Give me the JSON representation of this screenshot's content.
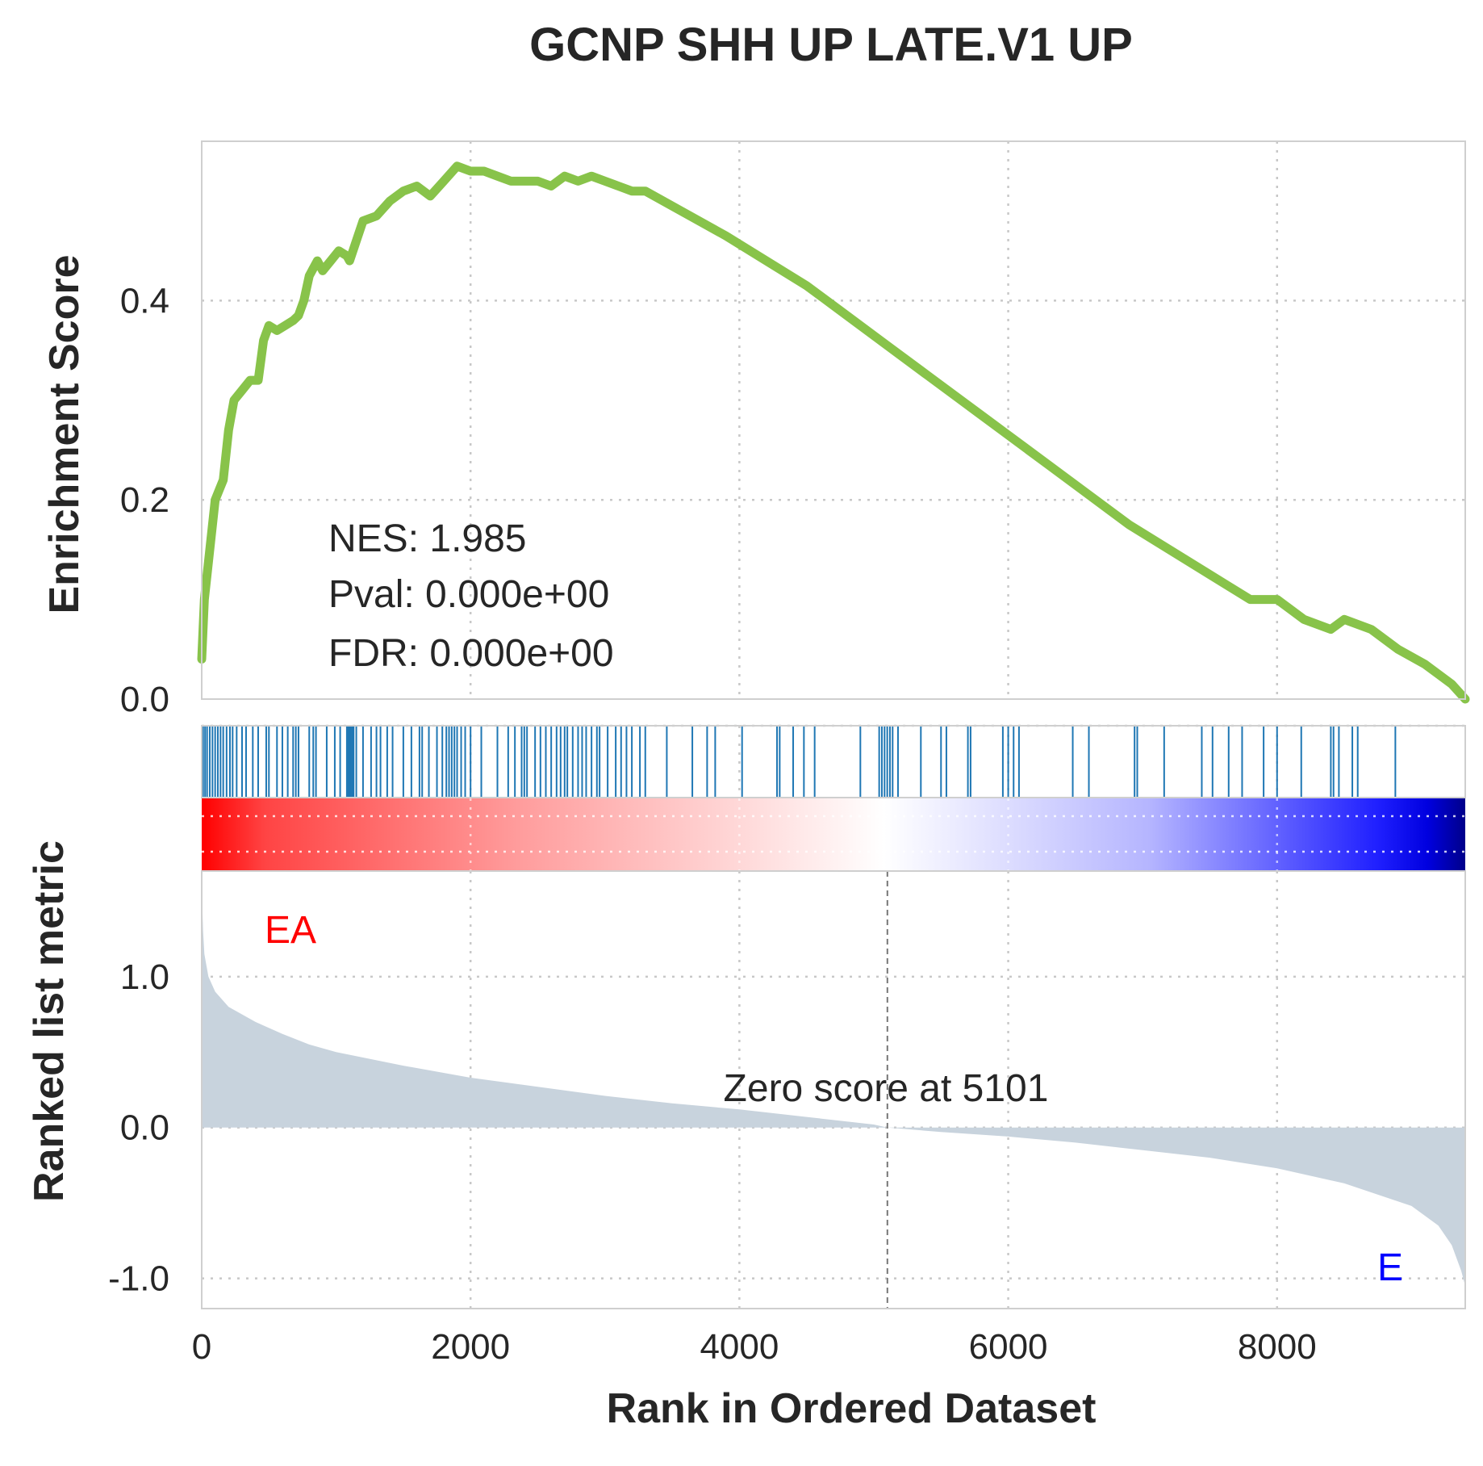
{
  "chart_data": {
    "type": "line",
    "title": "GCNP SHH UP LATE.V1 UP",
    "xlabel": "Rank in Ordered Dataset",
    "x_range": [
      0,
      9400
    ],
    "x_ticks": [
      0,
      2000,
      4000,
      6000,
      8000
    ],
    "x_tick_labels": [
      "0",
      "2000",
      "4000",
      "6000",
      "8000"
    ],
    "grid": true,
    "enrichment": {
      "ylabel": "Enrichment Score",
      "ylim": [
        0,
        0.56
      ],
      "y_ticks": [
        0.0,
        0.2,
        0.4
      ],
      "y_tick_labels": [
        "0.0",
        "0.2",
        "0.4"
      ],
      "color": "#88c34a",
      "points": [
        [
          0,
          0.04
        ],
        [
          20,
          0.1
        ],
        [
          60,
          0.15
        ],
        [
          100,
          0.2
        ],
        [
          160,
          0.22
        ],
        [
          200,
          0.27
        ],
        [
          240,
          0.3
        ],
        [
          300,
          0.31
        ],
        [
          360,
          0.32
        ],
        [
          420,
          0.32
        ],
        [
          460,
          0.36
        ],
        [
          500,
          0.375
        ],
        [
          560,
          0.37
        ],
        [
          620,
          0.375
        ],
        [
          680,
          0.38
        ],
        [
          720,
          0.385
        ],
        [
          760,
          0.4
        ],
        [
          800,
          0.425
        ],
        [
          860,
          0.44
        ],
        [
          900,
          0.43
        ],
        [
          960,
          0.44
        ],
        [
          1020,
          0.45
        ],
        [
          1080,
          0.445
        ],
        [
          1100,
          0.44
        ],
        [
          1150,
          0.46
        ],
        [
          1200,
          0.48
        ],
        [
          1300,
          0.485
        ],
        [
          1400,
          0.5
        ],
        [
          1500,
          0.51
        ],
        [
          1600,
          0.515
        ],
        [
          1700,
          0.505
        ],
        [
          1800,
          0.52
        ],
        [
          1900,
          0.535
        ],
        [
          2000,
          0.53
        ],
        [
          2100,
          0.53
        ],
        [
          2200,
          0.525
        ],
        [
          2300,
          0.52
        ],
        [
          2400,
          0.52
        ],
        [
          2500,
          0.52
        ],
        [
          2600,
          0.515
        ],
        [
          2700,
          0.525
        ],
        [
          2800,
          0.52
        ],
        [
          2900,
          0.525
        ],
        [
          3000,
          0.52
        ],
        [
          3100,
          0.515
        ],
        [
          3200,
          0.51
        ],
        [
          3300,
          0.51
        ],
        [
          3500,
          0.495
        ],
        [
          3700,
          0.48
        ],
        [
          3900,
          0.465
        ],
        [
          4200,
          0.44
        ],
        [
          4500,
          0.415
        ],
        [
          4800,
          0.385
        ],
        [
          5100,
          0.355
        ],
        [
          5400,
          0.325
        ],
        [
          5700,
          0.295
        ],
        [
          6000,
          0.265
        ],
        [
          6300,
          0.235
        ],
        [
          6600,
          0.205
        ],
        [
          6900,
          0.175
        ],
        [
          7200,
          0.15
        ],
        [
          7500,
          0.125
        ],
        [
          7800,
          0.1
        ],
        [
          8000,
          0.1
        ],
        [
          8200,
          0.08
        ],
        [
          8400,
          0.07
        ],
        [
          8500,
          0.08
        ],
        [
          8700,
          0.07
        ],
        [
          8900,
          0.05
        ],
        [
          9100,
          0.035
        ],
        [
          9300,
          0.015
        ],
        [
          9400,
          0.0
        ]
      ]
    },
    "hits": [
      10,
      25,
      40,
      60,
      80,
      100,
      120,
      140,
      160,
      185,
      210,
      230,
      260,
      300,
      330,
      380,
      420,
      480,
      500,
      560,
      600,
      640,
      680,
      700,
      720,
      800,
      830,
      850,
      930,
      990,
      1030,
      1080,
      1090,
      1100,
      1110,
      1120,
      1130,
      1150,
      1200,
      1260,
      1300,
      1330,
      1380,
      1420,
      1500,
      1560,
      1620,
      1640,
      1690,
      1750,
      1790,
      1820,
      1840,
      1860,
      1880,
      1900,
      1930,
      1960,
      2000,
      2080,
      2200,
      2280,
      2330,
      2380,
      2400,
      2420,
      2480,
      2520,
      2560,
      2600,
      2640,
      2670,
      2700,
      2720,
      2760,
      2800,
      2830,
      2860,
      2900,
      2940,
      2960,
      3020,
      3080,
      3120,
      3160,
      3200,
      3260,
      3300,
      3460,
      3650,
      3760,
      3820,
      4020,
      4280,
      4300,
      4400,
      4480,
      4560,
      4900,
      5040,
      5060,
      5080,
      5100,
      5120,
      5140,
      5180,
      5350,
      5500,
      5540,
      5700,
      5720,
      5960,
      6000,
      6040,
      6080,
      6480,
      6600,
      6940,
      6960,
      7160,
      7440,
      7520,
      7640,
      7740,
      7900,
      8000,
      8180,
      8400,
      8420,
      8460,
      8560,
      8600,
      8880
    ],
    "hit_color": "#1f77b4",
    "ranked_metric": {
      "ylabel": "Ranked list metric",
      "ylim": [
        -1.2,
        1.7
      ],
      "y_ticks": [
        -1.0,
        0.0,
        1.0
      ],
      "y_tick_labels": [
        "-1.0",
        "0.0",
        "1.0"
      ],
      "fill_color": "#c8d3dd",
      "points": [
        [
          0,
          1.6
        ],
        [
          5,
          1.45
        ],
        [
          10,
          1.3
        ],
        [
          20,
          1.15
        ],
        [
          50,
          1.0
        ],
        [
          100,
          0.9
        ],
        [
          200,
          0.8
        ],
        [
          400,
          0.7
        ],
        [
          600,
          0.62
        ],
        [
          800,
          0.55
        ],
        [
          1000,
          0.5
        ],
        [
          1500,
          0.41
        ],
        [
          2000,
          0.33
        ],
        [
          2500,
          0.27
        ],
        [
          3000,
          0.21
        ],
        [
          3500,
          0.16
        ],
        [
          4000,
          0.12
        ],
        [
          4500,
          0.07
        ],
        [
          5000,
          0.02
        ],
        [
          5101,
          0.0
        ],
        [
          5500,
          -0.03
        ],
        [
          6000,
          -0.06
        ],
        [
          6500,
          -0.1
        ],
        [
          7000,
          -0.15
        ],
        [
          7500,
          -0.2
        ],
        [
          8000,
          -0.27
        ],
        [
          8500,
          -0.37
        ],
        [
          9000,
          -0.52
        ],
        [
          9200,
          -0.65
        ],
        [
          9300,
          -0.78
        ],
        [
          9370,
          -0.95
        ],
        [
          9400,
          -1.05
        ]
      ],
      "zero_cross": 5101
    },
    "annotations": {
      "nes": "NES: 1.985",
      "pval": "Pval: 0.000e+00",
      "fdr": "FDR: 0.000e+00",
      "zero_score": "Zero score at 5101",
      "pos_label": "EA",
      "pos_color": "#ff0000",
      "neg_label": "E",
      "neg_color": "#0000ff"
    }
  }
}
